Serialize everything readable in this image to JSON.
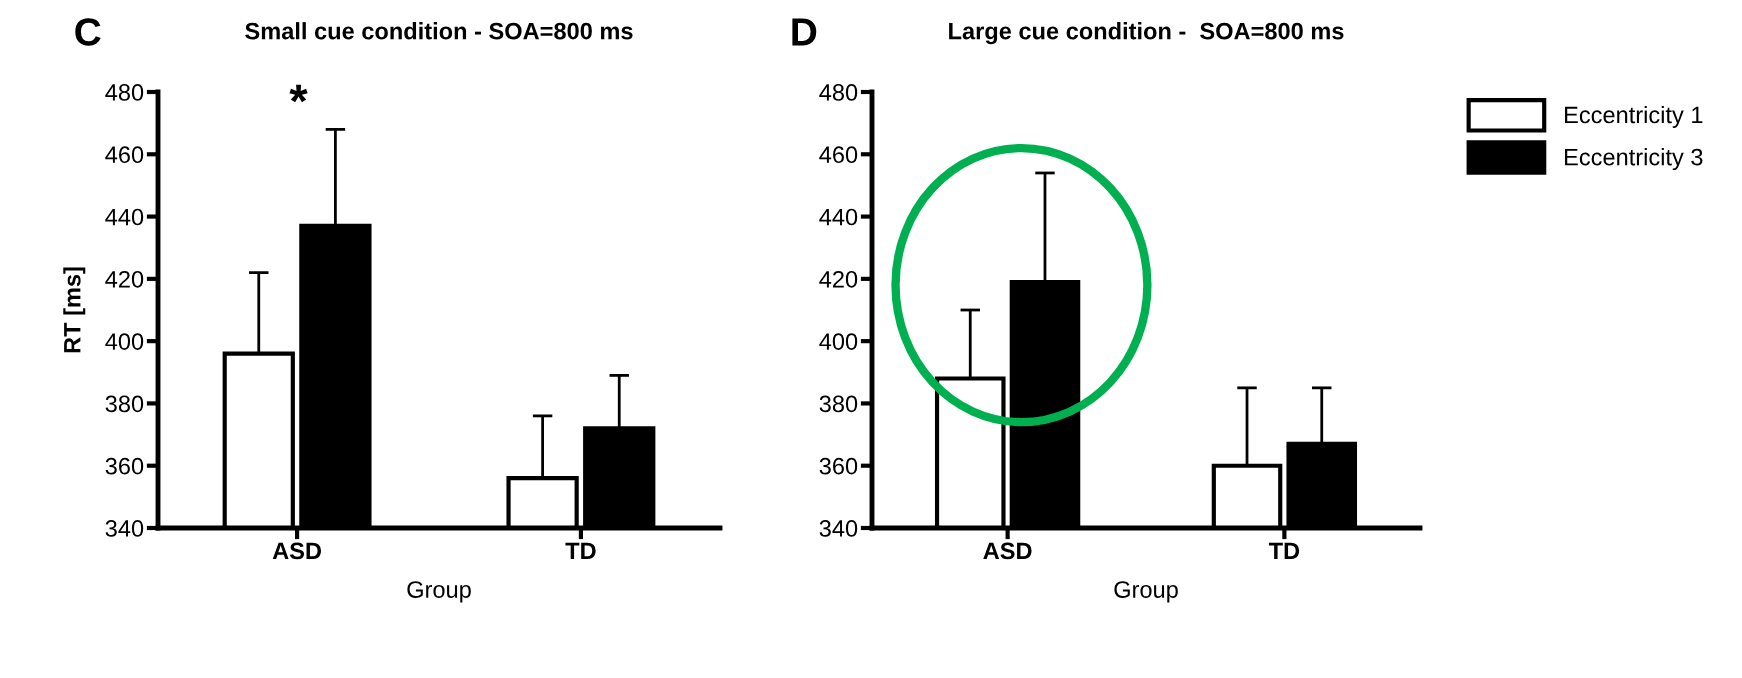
{
  "chart_data": [
    {
      "type": "bar",
      "title": "Small cue condition - SOA=800 ms",
      "xlabel": "Group",
      "ylabel": "RT [ms]",
      "categories": [
        "ASD",
        "TD"
      ],
      "series": [
        {
          "color": "#ffffff",
          "values": [
            396,
            356
          ],
          "errors": [
            26,
            20
          ]
        },
        {
          "color": "#000000",
          "values": [
            437,
            372
          ],
          "errors": [
            31,
            17
          ]
        }
      ],
      "ylim": [
        340,
        480
      ],
      "yticks": [
        340,
        360,
        380,
        400,
        420,
        440,
        460,
        480
      ],
      "grid": false,
      "legend": false,
      "annotations": [
        "C",
        "*"
      ]
    },
    {
      "type": "bar",
      "title": "Large cue condition -  SOA=800 ms",
      "xlabel": "Group",
      "categories": [
        "ASD",
        "TD"
      ],
      "series": [
        {
          "name": "Eccentricity 1",
          "color": "#ffffff",
          "values": [
            388,
            360
          ],
          "errors": [
            22,
            25
          ]
        },
        {
          "name": "Eccentricity 3",
          "color": "#000000",
          "values": [
            419,
            367
          ],
          "errors": [
            35,
            18
          ]
        }
      ],
      "ylim": [
        340,
        480
      ],
      "yticks": [
        340,
        360,
        380,
        400,
        420,
        440,
        460,
        480
      ],
      "grid": false,
      "legend": "top right",
      "annotations": [
        "D"
      ]
    }
  ]
}
